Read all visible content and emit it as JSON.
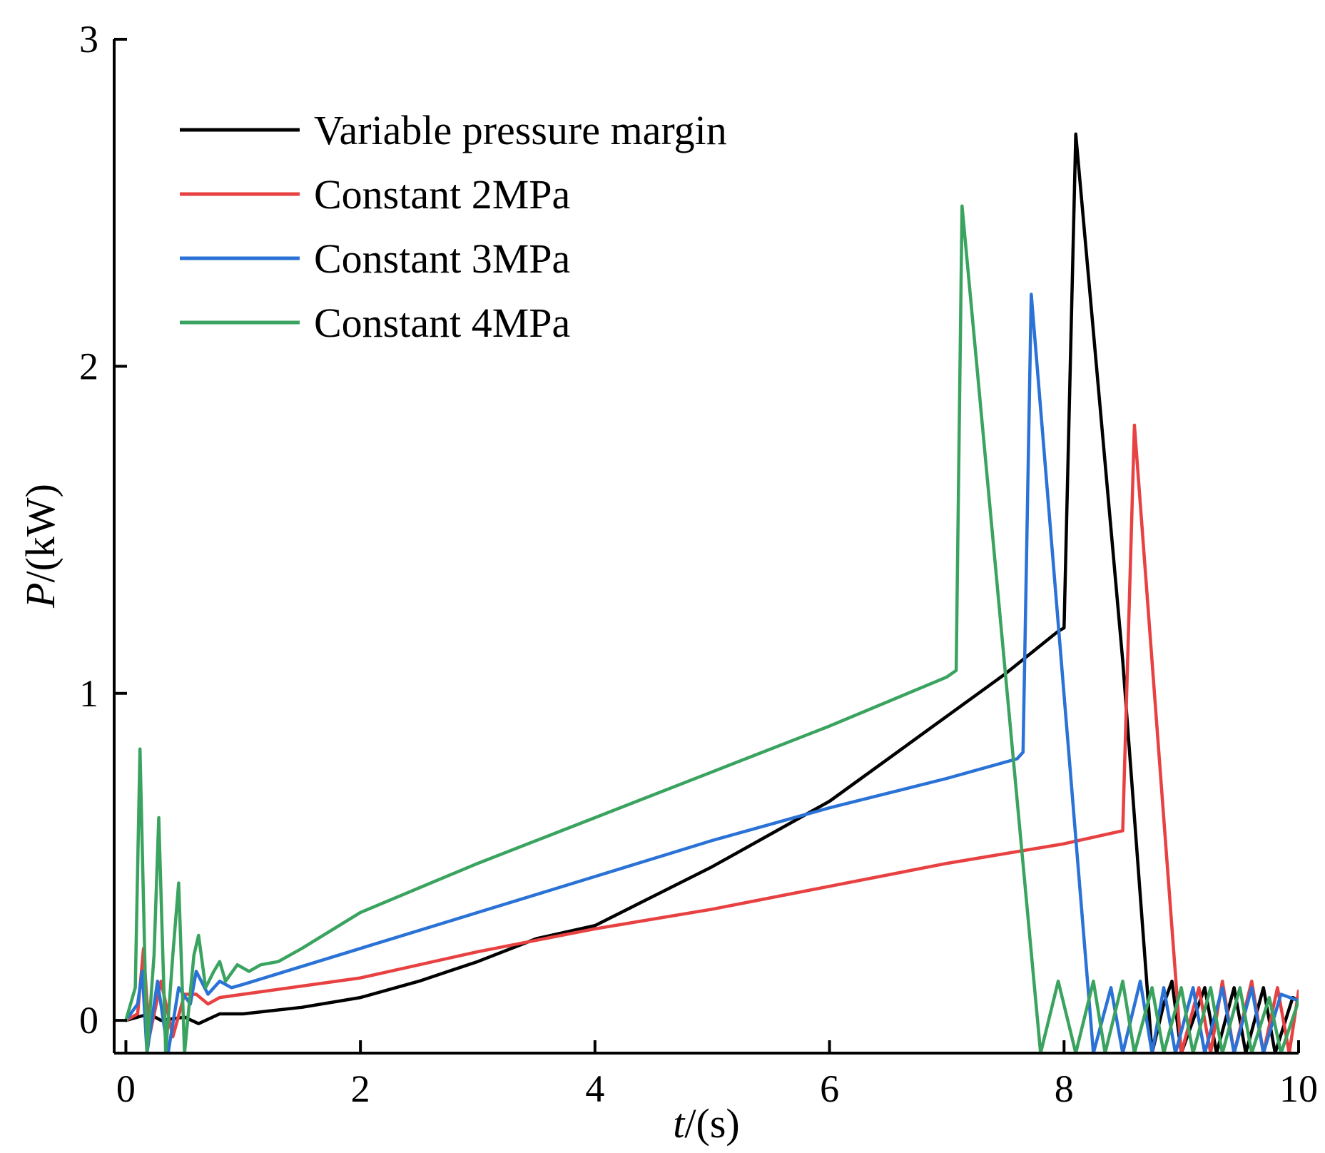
{
  "chart_data": {
    "type": "line",
    "title": "",
    "xlabel": {
      "var": "t",
      "unit": "/(s)"
    },
    "ylabel": {
      "var": "P",
      "unit": "/(kW)"
    },
    "xlim": [
      -0.1,
      10
    ],
    "ylim": [
      -0.1,
      3
    ],
    "xticks": [
      "0",
      "2",
      "4",
      "6",
      "8",
      "10"
    ],
    "xtick_values": [
      0,
      2,
      4,
      6,
      8,
      10
    ],
    "yticks": [
      "0",
      "1",
      "2",
      "3"
    ],
    "ytick_values": [
      0,
      1,
      2,
      3
    ],
    "grid": false,
    "legend_position": "top-left",
    "series": [
      {
        "name": "Variable pressure margin",
        "color": "#000000",
        "points": [
          [
            0,
            0
          ],
          [
            0.2,
            0.02
          ],
          [
            0.3,
            0
          ],
          [
            0.5,
            0.01
          ],
          [
            0.62,
            -0.01
          ],
          [
            0.8,
            0.02
          ],
          [
            1.0,
            0.02
          ],
          [
            1.5,
            0.04
          ],
          [
            2.0,
            0.07
          ],
          [
            2.5,
            0.12
          ],
          [
            3.0,
            0.18
          ],
          [
            3.5,
            0.25
          ],
          [
            4.0,
            0.29
          ],
          [
            4.5,
            0.38
          ],
          [
            5.0,
            0.47
          ],
          [
            5.5,
            0.57
          ],
          [
            6.0,
            0.67
          ],
          [
            6.5,
            0.8
          ],
          [
            7.0,
            0.93
          ],
          [
            7.5,
            1.06
          ],
          [
            7.95,
            1.19
          ],
          [
            8.0,
            1.2
          ],
          [
            8.1,
            2.71
          ],
          [
            8.5,
            1.1
          ],
          [
            8.75,
            -0.1
          ],
          [
            8.85,
            0.05
          ],
          [
            8.92,
            0.12
          ],
          [
            9.0,
            -0.1
          ],
          [
            9.2,
            0.1
          ],
          [
            9.3,
            -0.1
          ],
          [
            9.45,
            0.1
          ],
          [
            9.55,
            -0.1
          ],
          [
            9.7,
            0.1
          ],
          [
            9.8,
            -0.1
          ],
          [
            9.95,
            0.07
          ],
          [
            10.0,
            0.06
          ]
        ]
      },
      {
        "name": "Constant 2MPa",
        "color": "#e84141",
        "points": [
          [
            0,
            0
          ],
          [
            0.1,
            0.02
          ],
          [
            0.15,
            0.22
          ],
          [
            0.2,
            -0.05
          ],
          [
            0.3,
            0.12
          ],
          [
            0.4,
            -0.05
          ],
          [
            0.5,
            0.08
          ],
          [
            0.6,
            0.08
          ],
          [
            0.7,
            0.05
          ],
          [
            0.8,
            0.07
          ],
          [
            1.0,
            0.08
          ],
          [
            2.0,
            0.13
          ],
          [
            3.0,
            0.21
          ],
          [
            4.0,
            0.28
          ],
          [
            5.0,
            0.34
          ],
          [
            6.0,
            0.41
          ],
          [
            7.0,
            0.48
          ],
          [
            8.0,
            0.54
          ],
          [
            8.5,
            0.58
          ],
          [
            8.6,
            1.82
          ],
          [
            9.0,
            -0.1
          ],
          [
            9.15,
            0.1
          ],
          [
            9.25,
            -0.1
          ],
          [
            9.35,
            0.12
          ],
          [
            9.45,
            -0.1
          ],
          [
            9.6,
            0.12
          ],
          [
            9.7,
            -0.1
          ],
          [
            9.82,
            0.1
          ],
          [
            9.92,
            -0.1
          ],
          [
            10.0,
            0.09
          ]
        ]
      },
      {
        "name": "Constant 3MPa",
        "color": "#2a72d6",
        "points": [
          [
            0,
            0
          ],
          [
            0.1,
            0.05
          ],
          [
            0.14,
            0.15
          ],
          [
            0.18,
            -0.1
          ],
          [
            0.27,
            0.12
          ],
          [
            0.36,
            -0.1
          ],
          [
            0.45,
            0.1
          ],
          [
            0.55,
            0.05
          ],
          [
            0.6,
            0.15
          ],
          [
            0.7,
            0.08
          ],
          [
            0.8,
            0.12
          ],
          [
            0.9,
            0.1
          ],
          [
            1.0,
            0.11
          ],
          [
            2.0,
            0.22
          ],
          [
            3.0,
            0.33
          ],
          [
            4.0,
            0.44
          ],
          [
            5.0,
            0.55
          ],
          [
            6.0,
            0.65
          ],
          [
            7.0,
            0.74
          ],
          [
            7.6,
            0.8
          ],
          [
            7.65,
            0.82
          ],
          [
            7.72,
            2.22
          ],
          [
            8.25,
            -0.1
          ],
          [
            8.4,
            0.1
          ],
          [
            8.5,
            -0.1
          ],
          [
            8.65,
            0.12
          ],
          [
            8.75,
            -0.1
          ],
          [
            8.85,
            0.1
          ],
          [
            8.95,
            -0.1
          ],
          [
            9.1,
            0.1
          ],
          [
            9.2,
            -0.1
          ],
          [
            9.35,
            0.1
          ],
          [
            9.45,
            -0.1
          ],
          [
            9.6,
            0.1
          ],
          [
            9.7,
            -0.1
          ],
          [
            9.85,
            0.08
          ],
          [
            10.0,
            0.06
          ]
        ]
      },
      {
        "name": "Constant 4MPa",
        "color": "#3aa35f",
        "points": [
          [
            0,
            0
          ],
          [
            0.08,
            0.1
          ],
          [
            0.12,
            0.83
          ],
          [
            0.18,
            -0.1
          ],
          [
            0.24,
            0.2
          ],
          [
            0.28,
            0.62
          ],
          [
            0.34,
            -0.1
          ],
          [
            0.4,
            0.2
          ],
          [
            0.45,
            0.42
          ],
          [
            0.5,
            -0.1
          ],
          [
            0.58,
            0.2
          ],
          [
            0.62,
            0.26
          ],
          [
            0.68,
            0.1
          ],
          [
            0.75,
            0.15
          ],
          [
            0.8,
            0.18
          ],
          [
            0.85,
            0.12
          ],
          [
            0.95,
            0.17
          ],
          [
            1.05,
            0.15
          ],
          [
            1.15,
            0.17
          ],
          [
            1.3,
            0.18
          ],
          [
            1.5,
            0.22
          ],
          [
            2.0,
            0.33
          ],
          [
            3.0,
            0.48
          ],
          [
            4.0,
            0.62
          ],
          [
            5.0,
            0.76
          ],
          [
            6.0,
            0.9
          ],
          [
            7.0,
            1.05
          ],
          [
            7.08,
            1.07
          ],
          [
            7.13,
            2.49
          ],
          [
            7.8,
            -0.1
          ],
          [
            7.95,
            0.12
          ],
          [
            8.1,
            -0.1
          ],
          [
            8.25,
            0.12
          ],
          [
            8.35,
            -0.1
          ],
          [
            8.5,
            0.12
          ],
          [
            8.6,
            -0.1
          ],
          [
            8.75,
            0.1
          ],
          [
            8.85,
            -0.1
          ],
          [
            9.0,
            0.1
          ],
          [
            9.1,
            -0.1
          ],
          [
            9.25,
            0.1
          ],
          [
            9.35,
            -0.1
          ],
          [
            9.5,
            0.1
          ],
          [
            9.6,
            -0.1
          ],
          [
            9.75,
            0.07
          ],
          [
            9.85,
            -0.1
          ],
          [
            10.0,
            0.06
          ]
        ]
      }
    ]
  }
}
